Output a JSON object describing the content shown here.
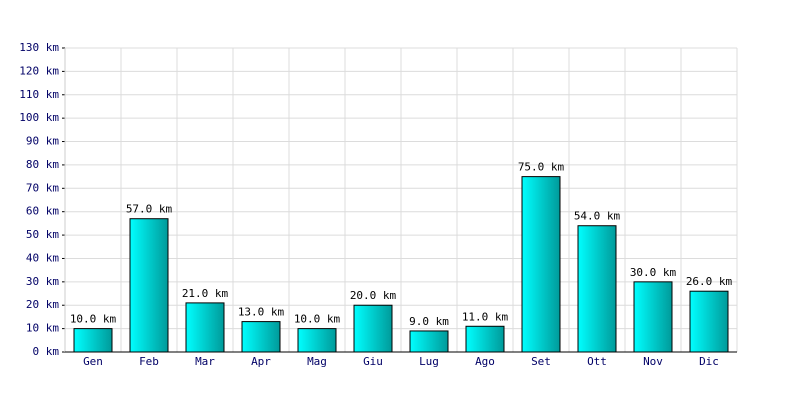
{
  "chart_data": {
    "type": "bar",
    "categories": [
      "Gen",
      "Feb",
      "Mar",
      "Apr",
      "Mag",
      "Giu",
      "Lug",
      "Ago",
      "Set",
      "Ott",
      "Nov",
      "Dic"
    ],
    "values": [
      10,
      57,
      21,
      13,
      10,
      20,
      9,
      11,
      75,
      54,
      30,
      26
    ],
    "value_labels": [
      "10.0 km",
      "57.0 km",
      "21.0 km",
      "13.0 km",
      "10.0 km",
      "20.0 km",
      "9.0 km",
      "11.0 km",
      "75.0 km",
      "54.0 km",
      "30.0 km",
      "26.0 km"
    ],
    "color": "#00e0e0",
    "ylim": [
      0,
      130
    ],
    "yticks": [
      {
        "value": 0,
        "label": "0 km"
      },
      {
        "value": 10,
        "label": "10 km"
      },
      {
        "value": 20,
        "label": "20 km"
      },
      {
        "value": 30,
        "label": "30 km"
      },
      {
        "value": 40,
        "label": "40 km"
      },
      {
        "value": 50,
        "label": "50 km"
      },
      {
        "value": 60,
        "label": "60 km"
      },
      {
        "value": 70,
        "label": "70 km"
      },
      {
        "value": 80,
        "label": "80 km"
      },
      {
        "value": 90,
        "label": "90 km"
      },
      {
        "value": 100,
        "label": "100 km"
      },
      {
        "value": 110,
        "label": "110 km"
      },
      {
        "value": 120,
        "label": "120 km"
      },
      {
        "value": 130,
        "label": "130 km"
      }
    ],
    "grid": true
  }
}
